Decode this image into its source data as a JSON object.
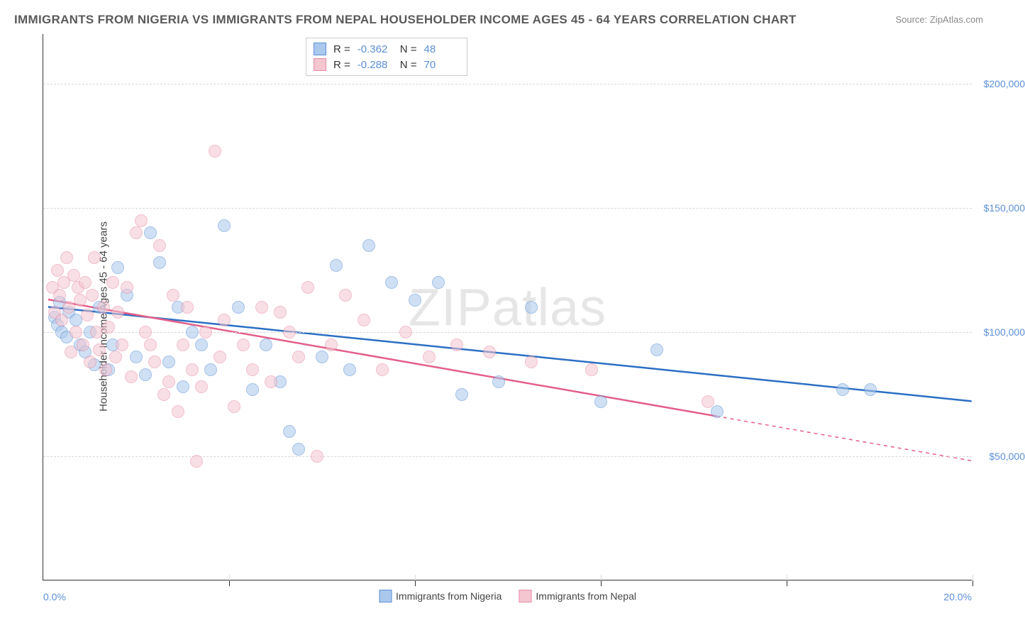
{
  "title": "IMMIGRANTS FROM NIGERIA VS IMMIGRANTS FROM NEPAL HOUSEHOLDER INCOME AGES 45 - 64 YEARS CORRELATION CHART",
  "source": "Source: ZipAtlas.com",
  "ylabel": "Householder Income Ages 45 - 64 years",
  "watermark": "ZIPatlas",
  "chart": {
    "type": "scatter",
    "xlim": [
      0,
      20
    ],
    "ylim": [
      0,
      220000
    ],
    "x_ticks": [
      0,
      4,
      8,
      12,
      16,
      20
    ],
    "x_tick_left_label": "0.0%",
    "x_tick_right_label": "20.0%",
    "y_gridlines": [
      50000,
      100000,
      150000,
      200000
    ],
    "y_tick_labels": [
      "$50,000",
      "$100,000",
      "$150,000",
      "$200,000"
    ],
    "grid_color": "#d8d8d8",
    "background_color": "#ffffff",
    "axis_color": "#333333",
    "tick_label_color": "#5b8fd6",
    "point_radius": 9,
    "point_opacity": 0.55,
    "series": [
      {
        "name": "Immigrants from Nigeria",
        "marker_fill": "#a9c8ec",
        "marker_stroke": "#5b8fd6",
        "trend_color": "#2b6fc4",
        "R": "-0.362",
        "N": "48",
        "trend": {
          "x1": 0.1,
          "y1": 110000,
          "x2": 20,
          "y2": 72000,
          "solid_until_x": 20
        },
        "points": [
          [
            0.25,
            106000
          ],
          [
            0.3,
            103000
          ],
          [
            0.35,
            112000
          ],
          [
            0.4,
            100000
          ],
          [
            0.5,
            98000
          ],
          [
            0.55,
            108000
          ],
          [
            0.7,
            105000
          ],
          [
            0.8,
            95000
          ],
          [
            0.9,
            92000
          ],
          [
            1.0,
            100000
          ],
          [
            1.1,
            87000
          ],
          [
            1.2,
            110000
          ],
          [
            1.4,
            85000
          ],
          [
            1.5,
            95000
          ],
          [
            1.6,
            126000
          ],
          [
            1.8,
            115000
          ],
          [
            2.0,
            90000
          ],
          [
            2.2,
            83000
          ],
          [
            2.3,
            140000
          ],
          [
            2.5,
            128000
          ],
          [
            2.7,
            88000
          ],
          [
            2.9,
            110000
          ],
          [
            3.0,
            78000
          ],
          [
            3.2,
            100000
          ],
          [
            3.4,
            95000
          ],
          [
            3.6,
            85000
          ],
          [
            3.9,
            143000
          ],
          [
            4.2,
            110000
          ],
          [
            4.5,
            77000
          ],
          [
            4.8,
            95000
          ],
          [
            5.1,
            80000
          ],
          [
            5.3,
            60000
          ],
          [
            5.5,
            53000
          ],
          [
            6.0,
            90000
          ],
          [
            6.3,
            127000
          ],
          [
            6.6,
            85000
          ],
          [
            7.0,
            135000
          ],
          [
            7.5,
            120000
          ],
          [
            8.0,
            113000
          ],
          [
            8.5,
            120000
          ],
          [
            9.0,
            75000
          ],
          [
            9.8,
            80000
          ],
          [
            10.5,
            110000
          ],
          [
            12.0,
            72000
          ],
          [
            13.2,
            93000
          ],
          [
            14.5,
            68000
          ],
          [
            17.2,
            77000
          ],
          [
            17.8,
            77000
          ]
        ]
      },
      {
        "name": "Immigrants from Nepal",
        "marker_fill": "#f4c6d0",
        "marker_stroke": "#e48ba5",
        "trend_color": "#e45e88",
        "R": "-0.288",
        "N": "70",
        "trend": {
          "x1": 0.1,
          "y1": 113000,
          "x2": 20,
          "y2": 48000,
          "solid_until_x": 14.5
        },
        "points": [
          [
            0.2,
            118000
          ],
          [
            0.25,
            108000
          ],
          [
            0.3,
            125000
          ],
          [
            0.35,
            115000
          ],
          [
            0.4,
            105000
          ],
          [
            0.45,
            120000
          ],
          [
            0.5,
            130000
          ],
          [
            0.55,
            110000
          ],
          [
            0.6,
            92000
          ],
          [
            0.65,
            123000
          ],
          [
            0.7,
            100000
          ],
          [
            0.75,
            118000
          ],
          [
            0.8,
            113000
          ],
          [
            0.85,
            95000
          ],
          [
            0.9,
            120000
          ],
          [
            0.95,
            107000
          ],
          [
            1.0,
            88000
          ],
          [
            1.05,
            115000
          ],
          [
            1.1,
            130000
          ],
          [
            1.15,
            100000
          ],
          [
            1.2,
            93000
          ],
          [
            1.3,
            110000
          ],
          [
            1.35,
            85000
          ],
          [
            1.4,
            102000
          ],
          [
            1.5,
            120000
          ],
          [
            1.55,
            90000
          ],
          [
            1.6,
            108000
          ],
          [
            1.7,
            95000
          ],
          [
            1.8,
            118000
          ],
          [
            1.9,
            82000
          ],
          [
            2.0,
            140000
          ],
          [
            2.1,
            145000
          ],
          [
            2.2,
            100000
          ],
          [
            2.3,
            95000
          ],
          [
            2.4,
            88000
          ],
          [
            2.5,
            135000
          ],
          [
            2.6,
            75000
          ],
          [
            2.7,
            80000
          ],
          [
            2.8,
            115000
          ],
          [
            2.9,
            68000
          ],
          [
            3.0,
            95000
          ],
          [
            3.1,
            110000
          ],
          [
            3.2,
            85000
          ],
          [
            3.3,
            48000
          ],
          [
            3.4,
            78000
          ],
          [
            3.5,
            100000
          ],
          [
            3.7,
            173000
          ],
          [
            3.8,
            90000
          ],
          [
            3.9,
            105000
          ],
          [
            4.1,
            70000
          ],
          [
            4.3,
            95000
          ],
          [
            4.5,
            85000
          ],
          [
            4.7,
            110000
          ],
          [
            4.9,
            80000
          ],
          [
            5.1,
            108000
          ],
          [
            5.3,
            100000
          ],
          [
            5.5,
            90000
          ],
          [
            5.7,
            118000
          ],
          [
            5.9,
            50000
          ],
          [
            6.2,
            95000
          ],
          [
            6.5,
            115000
          ],
          [
            6.9,
            105000
          ],
          [
            7.3,
            85000
          ],
          [
            7.8,
            100000
          ],
          [
            8.3,
            90000
          ],
          [
            8.9,
            95000
          ],
          [
            9.6,
            92000
          ],
          [
            10.5,
            88000
          ],
          [
            11.8,
            85000
          ],
          [
            14.3,
            72000
          ]
        ]
      }
    ]
  },
  "legend_top": {
    "r_label": "R =",
    "n_label": "N ="
  }
}
